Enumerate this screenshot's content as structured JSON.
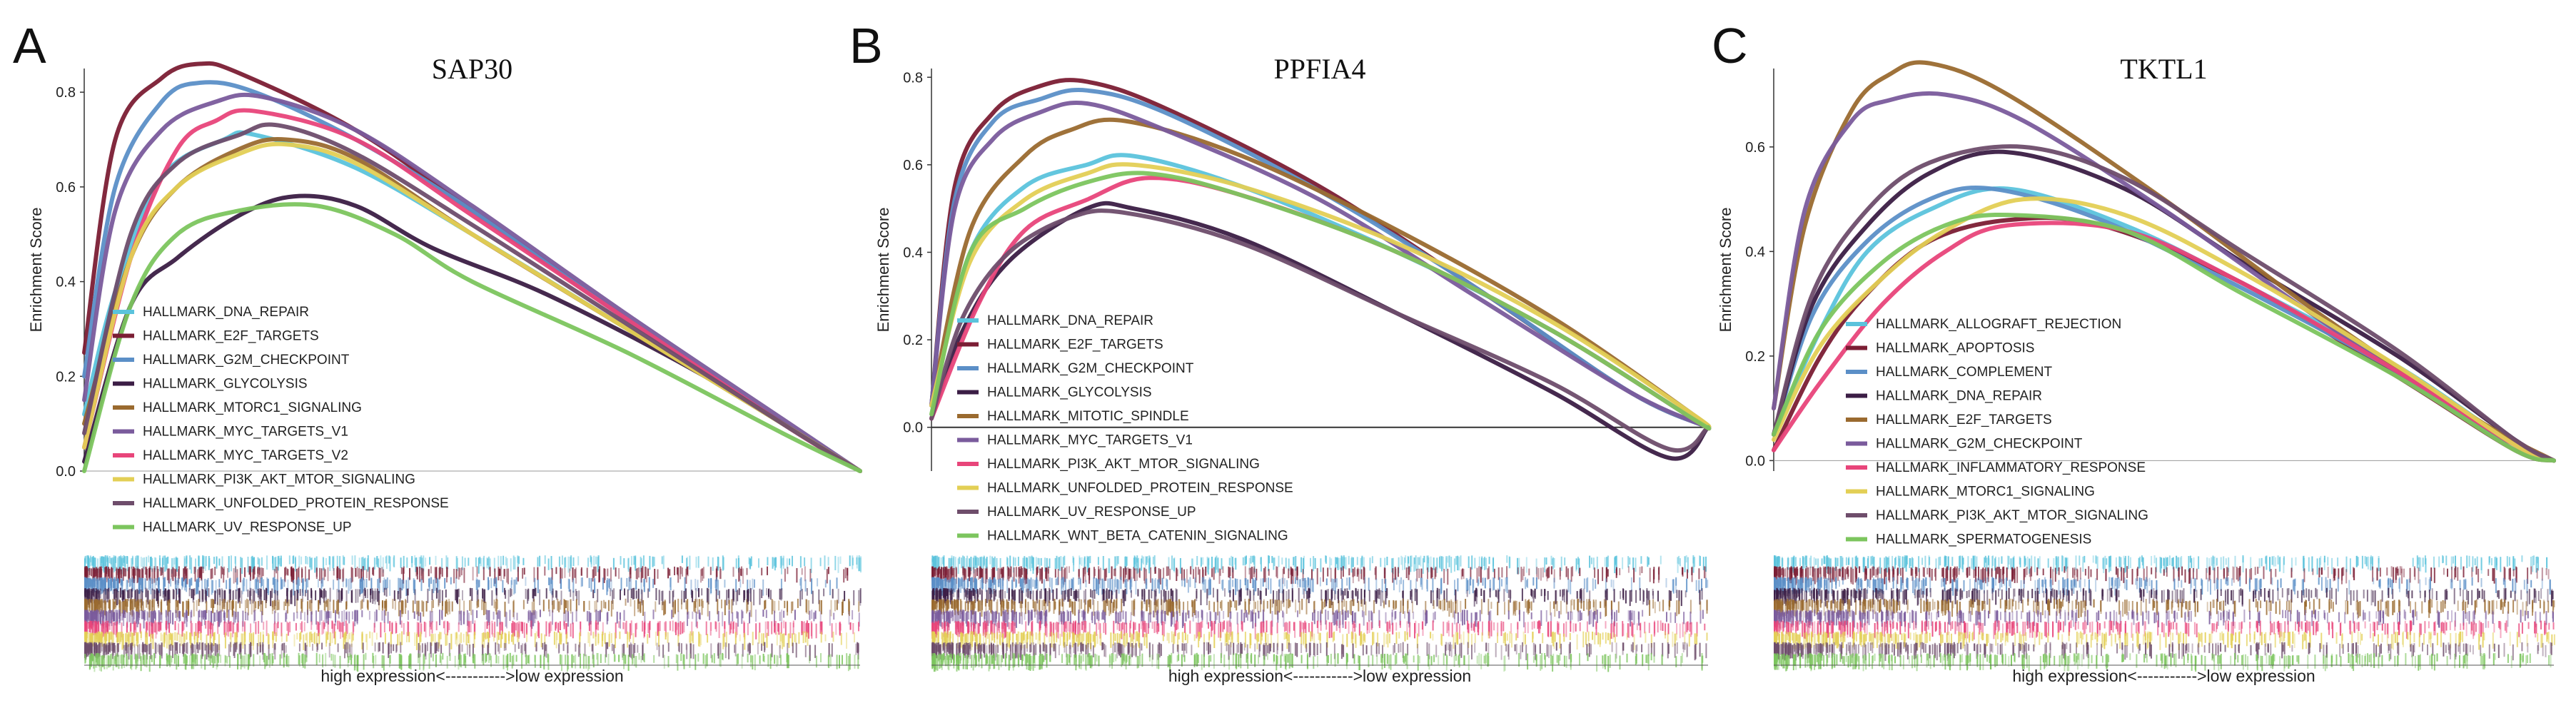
{
  "chart_data": [
    {
      "type": "line",
      "panel_letter": "A",
      "title": "SAP30",
      "ylabel": "Enrichment Score",
      "xlabel": "high expression<----------->low expression",
      "ylim": [
        0,
        0.85
      ],
      "y_ticks": [
        "0.0",
        "0.2",
        "0.4",
        "0.6",
        "0.8"
      ],
      "y_tick_values": [
        0,
        0.2,
        0.4,
        0.6,
        0.8
      ],
      "zero_line": false,
      "series": [
        {
          "name": "HALLMARK_DNA_REPAIR",
          "color": "#5bc3dc",
          "x": [
            0,
            0.04,
            0.1,
            0.18,
            0.22,
            0.35,
            0.5,
            0.7,
            0.9,
            1
          ],
          "values": [
            0.12,
            0.38,
            0.62,
            0.7,
            0.71,
            0.64,
            0.5,
            0.3,
            0.1,
            0
          ]
        },
        {
          "name": "HALLMARK_E2F_TARGETS",
          "color": "#7b1e34",
          "x": [
            0,
            0.04,
            0.1,
            0.15,
            0.2,
            0.35,
            0.5,
            0.7,
            0.9,
            1
          ],
          "values": [
            0.25,
            0.7,
            0.83,
            0.86,
            0.84,
            0.72,
            0.55,
            0.32,
            0.1,
            0
          ]
        },
        {
          "name": "HALLMARK_G2M_CHECKPOINT",
          "color": "#5b8fc7",
          "x": [
            0,
            0.04,
            0.1,
            0.15,
            0.22,
            0.35,
            0.5,
            0.7,
            0.9,
            1
          ],
          "values": [
            0.2,
            0.6,
            0.78,
            0.82,
            0.8,
            0.7,
            0.55,
            0.32,
            0.1,
            0
          ]
        },
        {
          "name": "HALLMARK_GLYCOLYSIS",
          "color": "#3b1d45",
          "x": [
            0,
            0.06,
            0.12,
            0.2,
            0.27,
            0.35,
            0.45,
            0.6,
            0.8,
            1
          ],
          "values": [
            0.02,
            0.35,
            0.45,
            0.54,
            0.58,
            0.56,
            0.47,
            0.37,
            0.2,
            0
          ]
        },
        {
          "name": "HALLMARK_MTORC1_SIGNALING",
          "color": "#9a6a2f",
          "x": [
            0,
            0.06,
            0.12,
            0.2,
            0.26,
            0.35,
            0.5,
            0.7,
            0.9,
            1
          ],
          "values": [
            0.1,
            0.45,
            0.6,
            0.68,
            0.7,
            0.66,
            0.5,
            0.3,
            0.1,
            0
          ]
        },
        {
          "name": "HALLMARK_MYC_TARGETS_V1",
          "color": "#7a5b9c",
          "x": [
            0,
            0.04,
            0.1,
            0.17,
            0.23,
            0.35,
            0.5,
            0.7,
            0.9,
            1
          ],
          "values": [
            0.15,
            0.55,
            0.72,
            0.78,
            0.79,
            0.72,
            0.56,
            0.33,
            0.11,
            0
          ]
        },
        {
          "name": "HALLMARK_MYC_TARGETS_V2",
          "color": "#e8457a",
          "x": [
            0,
            0.06,
            0.12,
            0.17,
            0.22,
            0.35,
            0.5,
            0.7,
            0.9,
            1
          ],
          "values": [
            0.05,
            0.45,
            0.68,
            0.74,
            0.76,
            0.7,
            0.54,
            0.32,
            0.1,
            0
          ]
        },
        {
          "name": "HALLMARK_PI3K_AKT_MTOR_SIGNALING",
          "color": "#e3cf55",
          "x": [
            0,
            0.06,
            0.12,
            0.2,
            0.26,
            0.35,
            0.5,
            0.7,
            0.9,
            1
          ],
          "values": [
            0.05,
            0.45,
            0.6,
            0.67,
            0.69,
            0.65,
            0.5,
            0.3,
            0.1,
            0
          ]
        },
        {
          "name": "HALLMARK_UNFOLDED_PROTEIN_RESPONSE",
          "color": "#6e4d6b",
          "x": [
            0,
            0.06,
            0.12,
            0.2,
            0.25,
            0.35,
            0.5,
            0.7,
            0.9,
            1
          ],
          "values": [
            0.08,
            0.5,
            0.65,
            0.71,
            0.73,
            0.67,
            0.52,
            0.31,
            0.1,
            0
          ]
        },
        {
          "name": "HALLMARK_UV_RESPONSE_UP",
          "color": "#7cc55e",
          "x": [
            0,
            0.06,
            0.12,
            0.2,
            0.3,
            0.4,
            0.5,
            0.7,
            0.9,
            1
          ],
          "values": [
            0,
            0.35,
            0.5,
            0.55,
            0.56,
            0.5,
            0.4,
            0.25,
            0.08,
            0
          ]
        }
      ],
      "legend_position": "left-inside"
    },
    {
      "type": "line",
      "panel_letter": "B",
      "title": "PPFIA4",
      "ylabel": "Enrichment Score",
      "xlabel": "high expression<----------->low expression",
      "ylim": [
        -0.1,
        0.82
      ],
      "y_ticks": [
        "0.0",
        "0.2",
        "0.4",
        "0.6",
        "0.8"
      ],
      "y_tick_values": [
        0,
        0.2,
        0.4,
        0.6,
        0.8
      ],
      "zero_line": true,
      "series": [
        {
          "name": "HALLMARK_DNA_REPAIR",
          "color": "#5bc3dc",
          "x": [
            0,
            0.05,
            0.12,
            0.2,
            0.26,
            0.4,
            0.6,
            0.8,
            0.98,
            1
          ],
          "values": [
            0.05,
            0.4,
            0.55,
            0.6,
            0.62,
            0.55,
            0.4,
            0.22,
            0.02,
            0
          ]
        },
        {
          "name": "HALLMARK_E2F_TARGETS",
          "color": "#7b1e34",
          "x": [
            0,
            0.03,
            0.08,
            0.14,
            0.2,
            0.3,
            0.5,
            0.7,
            0.9,
            1
          ],
          "values": [
            0.05,
            0.55,
            0.72,
            0.78,
            0.79,
            0.73,
            0.55,
            0.32,
            0.08,
            0
          ]
        },
        {
          "name": "HALLMARK_G2M_CHECKPOINT",
          "color": "#5b8fc7",
          "x": [
            0,
            0.03,
            0.08,
            0.14,
            0.2,
            0.3,
            0.5,
            0.7,
            0.9,
            1
          ],
          "values": [
            0.05,
            0.52,
            0.7,
            0.75,
            0.77,
            0.72,
            0.54,
            0.32,
            0.08,
            0
          ]
        },
        {
          "name": "HALLMARK_GLYCOLYSIS",
          "color": "#3b1d45",
          "x": [
            0,
            0.04,
            0.1,
            0.2,
            0.26,
            0.4,
            0.6,
            0.8,
            0.95,
            1
          ],
          "values": [
            0.02,
            0.22,
            0.38,
            0.5,
            0.5,
            0.43,
            0.26,
            0.08,
            -0.07,
            0
          ]
        },
        {
          "name": "HALLMARK_MITOTIC_SPINDLE",
          "color": "#9a6a2f",
          "x": [
            0,
            0.05,
            0.12,
            0.18,
            0.25,
            0.4,
            0.6,
            0.8,
            0.98,
            1
          ],
          "values": [
            0.05,
            0.45,
            0.62,
            0.68,
            0.7,
            0.62,
            0.45,
            0.25,
            0.03,
            0
          ]
        },
        {
          "name": "HALLMARK_MYC_TARGETS_V1",
          "color": "#7a5b9c",
          "x": [
            0,
            0.03,
            0.08,
            0.14,
            0.2,
            0.3,
            0.5,
            0.7,
            0.9,
            1
          ],
          "values": [
            0.05,
            0.5,
            0.66,
            0.72,
            0.74,
            0.68,
            0.52,
            0.3,
            0.08,
            0
          ]
        },
        {
          "name": "HALLMARK_PI3K_AKT_MTOR_SIGNALING",
          "color": "#e8457a",
          "x": [
            0,
            0.06,
            0.12,
            0.2,
            0.28,
            0.4,
            0.6,
            0.8,
            0.98,
            1
          ],
          "values": [
            0.02,
            0.28,
            0.45,
            0.52,
            0.57,
            0.53,
            0.4,
            0.22,
            0.02,
            0
          ]
        },
        {
          "name": "HALLMARK_UNFOLDED_PROTEIN_RESPONSE",
          "color": "#e3cf55",
          "x": [
            0,
            0.05,
            0.12,
            0.2,
            0.26,
            0.4,
            0.6,
            0.8,
            0.98,
            1
          ],
          "values": [
            0.05,
            0.38,
            0.52,
            0.58,
            0.6,
            0.55,
            0.42,
            0.24,
            0.03,
            0
          ]
        },
        {
          "name": "HALLMARK_UV_RESPONSE_UP",
          "color": "#6e4d6b",
          "x": [
            0,
            0.04,
            0.1,
            0.18,
            0.25,
            0.4,
            0.6,
            0.8,
            0.95,
            1
          ],
          "values": [
            0.02,
            0.25,
            0.4,
            0.48,
            0.49,
            0.42,
            0.26,
            0.1,
            -0.05,
            0
          ]
        },
        {
          "name": "HALLMARK_WNT_BETA_CATENIN_SIGNALING",
          "color": "#7cc55e",
          "x": [
            0,
            0.05,
            0.12,
            0.2,
            0.28,
            0.4,
            0.6,
            0.8,
            0.98,
            1
          ],
          "values": [
            0.03,
            0.4,
            0.5,
            0.56,
            0.58,
            0.53,
            0.4,
            0.22,
            0.02,
            0
          ]
        }
      ],
      "legend_position": "bottom-left-inside"
    },
    {
      "type": "line",
      "panel_letter": "C",
      "title": "TKTL1",
      "ylabel": "Enrichment Score",
      "xlabel": "high expression<----------->low expression",
      "ylim": [
        -0.02,
        0.75
      ],
      "y_ticks": [
        "0.0",
        "0.2",
        "0.4",
        "0.6"
      ],
      "y_tick_values": [
        0,
        0.2,
        0.4,
        0.6
      ],
      "zero_line": false,
      "series": [
        {
          "name": "HALLMARK_ALLOGRAFT_REJECTION",
          "color": "#5bc3dc",
          "x": [
            0,
            0.06,
            0.12,
            0.2,
            0.3,
            0.45,
            0.6,
            0.8,
            0.95,
            1
          ],
          "values": [
            0.05,
            0.25,
            0.4,
            0.48,
            0.52,
            0.45,
            0.34,
            0.18,
            0.03,
            0
          ]
        },
        {
          "name": "HALLMARK_APOPTOSIS",
          "color": "#7b1e34",
          "x": [
            0,
            0.06,
            0.12,
            0.2,
            0.3,
            0.42,
            0.6,
            0.8,
            0.95,
            1
          ],
          "values": [
            0.02,
            0.2,
            0.32,
            0.42,
            0.46,
            0.45,
            0.34,
            0.16,
            0.02,
            0
          ]
        },
        {
          "name": "HALLMARK_COMPLEMENT",
          "color": "#5b8fc7",
          "x": [
            0,
            0.05,
            0.12,
            0.2,
            0.28,
            0.42,
            0.6,
            0.8,
            0.95,
            1
          ],
          "values": [
            0.05,
            0.28,
            0.42,
            0.5,
            0.52,
            0.46,
            0.33,
            0.17,
            0.03,
            0
          ]
        },
        {
          "name": "HALLMARK_DNA_REPAIR",
          "color": "#3b1d45",
          "x": [
            0,
            0.05,
            0.12,
            0.2,
            0.3,
            0.45,
            0.6,
            0.8,
            0.95,
            1
          ],
          "values": [
            0.05,
            0.3,
            0.45,
            0.55,
            0.59,
            0.52,
            0.38,
            0.2,
            0.04,
            0
          ]
        },
        {
          "name": "HALLMARK_E2F_TARGETS",
          "color": "#9a6a2f",
          "x": [
            0,
            0.04,
            0.1,
            0.15,
            0.2,
            0.3,
            0.5,
            0.7,
            0.9,
            1
          ],
          "values": [
            0.1,
            0.45,
            0.67,
            0.74,
            0.76,
            0.7,
            0.5,
            0.28,
            0.08,
            0
          ]
        },
        {
          "name": "HALLMARK_G2M_CHECKPOINT",
          "color": "#7a5b9c",
          "x": [
            0,
            0.04,
            0.1,
            0.15,
            0.22,
            0.32,
            0.5,
            0.7,
            0.9,
            1
          ],
          "values": [
            0.1,
            0.48,
            0.65,
            0.69,
            0.7,
            0.65,
            0.48,
            0.27,
            0.07,
            0
          ]
        },
        {
          "name": "HALLMARK_INFLAMMATORY_RESPONSE",
          "color": "#e8457a",
          "x": [
            0,
            0.06,
            0.14,
            0.22,
            0.3,
            0.45,
            0.6,
            0.8,
            0.95,
            1
          ],
          "values": [
            0.02,
            0.15,
            0.3,
            0.4,
            0.45,
            0.44,
            0.34,
            0.17,
            0.03,
            0
          ]
        },
        {
          "name": "HALLMARK_MTORC1_SIGNALING",
          "color": "#e3cf55",
          "x": [
            0,
            0.06,
            0.14,
            0.22,
            0.32,
            0.45,
            0.6,
            0.8,
            0.95,
            1
          ],
          "values": [
            0.04,
            0.22,
            0.35,
            0.44,
            0.5,
            0.47,
            0.36,
            0.18,
            0.03,
            0
          ]
        },
        {
          "name": "HALLMARK_PI3K_AKT_MTOR_SIGNALING",
          "color": "#6e4d6b",
          "x": [
            0,
            0.05,
            0.12,
            0.2,
            0.32,
            0.45,
            0.6,
            0.8,
            0.95,
            1
          ],
          "values": [
            0.05,
            0.32,
            0.48,
            0.57,
            0.6,
            0.54,
            0.4,
            0.21,
            0.04,
            0
          ]
        },
        {
          "name": "HALLMARK_SPERMATOGENESIS",
          "color": "#7cc55e",
          "x": [
            0,
            0.06,
            0.14,
            0.22,
            0.3,
            0.45,
            0.6,
            0.8,
            0.95,
            1
          ],
          "values": [
            0.05,
            0.25,
            0.38,
            0.45,
            0.47,
            0.44,
            0.32,
            0.16,
            0.02,
            0
          ]
        }
      ],
      "legend_position": "bottom-left-inside"
    }
  ]
}
